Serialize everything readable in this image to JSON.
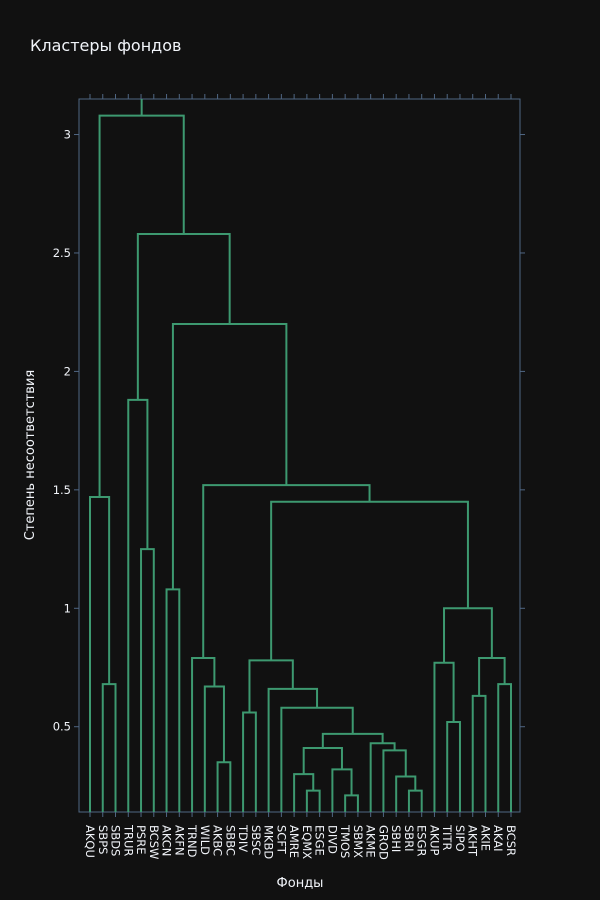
{
  "chart_data": {
    "type": "dendrogram",
    "title": "Кластеры фондов",
    "xlabel": "Фонды",
    "ylabel": "Степень несоответствия",
    "ylim": [
      0.14,
      3.15
    ],
    "yticks": [
      0.5,
      1,
      1.5,
      2,
      2.5,
      3
    ],
    "ytick_labels": [
      "0.5",
      "1",
      "1.5",
      "2",
      "2.5",
      "3"
    ],
    "grid": false,
    "line_color": "#3d9970",
    "leaves": [
      "AKQU",
      "SBPS",
      "SBDS",
      "TRUR",
      "PSRE",
      "BCSW",
      "AKCN",
      "AKFN",
      "TRND",
      "WILD",
      "AKBC",
      "SBBC",
      "TDIV",
      "SBSC",
      "MKBD",
      "SCFT",
      "AMRE",
      "EQMX",
      "ESGE",
      "DIVD",
      "TMOS",
      "SBMX",
      "AKME",
      "GROD",
      "SBHI",
      "SBRI",
      "ESGR",
      "AKUP",
      "TITR",
      "SIPO",
      "AKHT",
      "AKIE",
      "AKAI",
      "BCSR"
    ],
    "merges": [
      {
        "a": "SBPS",
        "b": "SBDS",
        "height": 0.68
      },
      {
        "a": "AKQU",
        "b": 0,
        "height": 1.47
      },
      {
        "a": "PSRE",
        "b": "BCSW",
        "height": 1.25
      },
      {
        "a": "TRUR",
        "b": 2,
        "height": 1.88
      },
      {
        "a": "AKCN",
        "b": "AKFN",
        "height": 1.08
      },
      {
        "a": "AKBC",
        "b": "SBBC",
        "height": 0.35
      },
      {
        "a": "WILD",
        "b": 5,
        "height": 0.67
      },
      {
        "a": "TRND",
        "b": 6,
        "height": 0.79
      },
      {
        "a": "TDIV",
        "b": "SBSC",
        "height": 0.56
      },
      {
        "a": "EQMX",
        "b": "ESGE",
        "height": 0.23
      },
      {
        "a": "AMRE",
        "b": 9,
        "height": 0.3
      },
      {
        "a": "TMOS",
        "b": "SBMX",
        "height": 0.21
      },
      {
        "a": "DIVD",
        "b": 11,
        "height": 0.32
      },
      {
        "a": 10,
        "b": 12,
        "height": 0.41
      },
      {
        "a": "SBRI",
        "b": "ESGR",
        "height": 0.23
      },
      {
        "a": "SBHI",
        "b": 14,
        "height": 0.29
      },
      {
        "a": "GROD",
        "b": 15,
        "height": 0.4
      },
      {
        "a": "AKME",
        "b": 16,
        "height": 0.43
      },
      {
        "a": 13,
        "b": 17,
        "height": 0.47
      },
      {
        "a": "SCFT",
        "b": 18,
        "height": 0.58
      },
      {
        "a": "MKBD",
        "b": 19,
        "height": 0.66
      },
      {
        "a": 8,
        "b": 20,
        "height": 0.78
      },
      {
        "a": "TITR",
        "b": "SIPO",
        "height": 0.52
      },
      {
        "a": "AKUP",
        "b": 22,
        "height": 0.77
      },
      {
        "a": "AKHT",
        "b": "AKIE",
        "height": 0.63
      },
      {
        "a": "AKAI",
        "b": "BCSR",
        "height": 0.68
      },
      {
        "a": 24,
        "b": 25,
        "height": 0.79
      },
      {
        "a": 23,
        "b": 26,
        "height": 1.0
      },
      {
        "a": 21,
        "b": 27,
        "height": 1.45
      },
      {
        "a": 7,
        "b": 28,
        "height": 1.52
      },
      {
        "a": 4,
        "b": 29,
        "height": 2.2
      },
      {
        "a": 3,
        "b": 30,
        "height": 2.58
      },
      {
        "a": 1,
        "b": 31,
        "height": 3.08
      }
    ]
  }
}
